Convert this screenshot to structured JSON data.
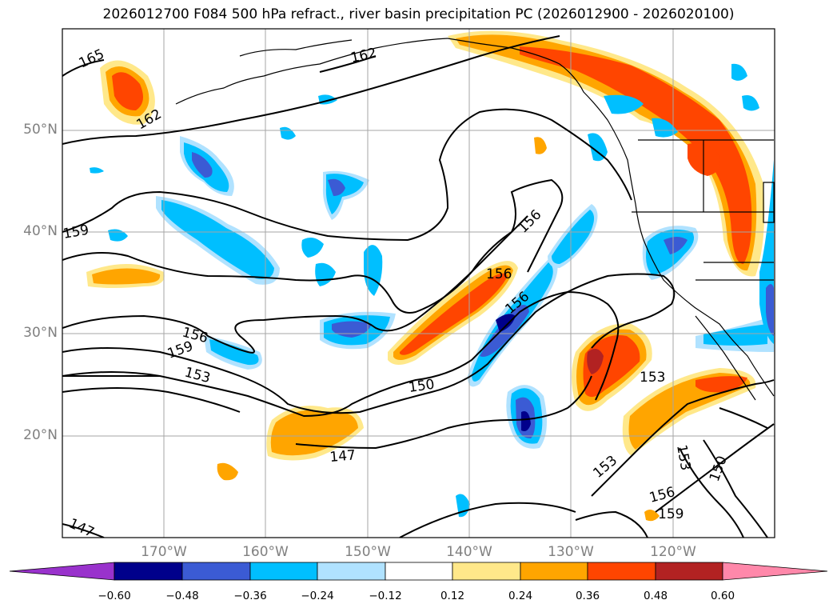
{
  "title": "2026012700 F084 500 hPa refract., river basin precipitation PC (2026012900 - 2026020100)",
  "map": {
    "extent": {
      "lon": [
        -180,
        -110
      ],
      "lat": [
        10,
        60
      ]
    },
    "gridlines": true,
    "lat_labels": [
      "50°N",
      "40°N",
      "30°N",
      "20°N"
    ],
    "lon_labels": [
      "170°W",
      "160°W",
      "150°W",
      "140°W",
      "130°W",
      "120°W"
    ],
    "contour_labels": [
      "165",
      "162",
      "162",
      "159",
      "156",
      "156",
      "156",
      "159",
      "153",
      "150",
      "147",
      "153",
      "153",
      "150",
      "156",
      "159",
      "147"
    ],
    "colors": {
      "neg_extreme": "#9932cc",
      "neg_060": "#00008b",
      "neg_048": "#3b5bd4",
      "neg_036": "#00bfff",
      "neg_024": "#b0e2ff",
      "neutral": "#ffffff",
      "pos_012": "#ffe88a",
      "pos_024": "#ffa500",
      "pos_036": "#ff4500",
      "pos_048": "#b22222",
      "pos_extreme": "#ff88aa"
    }
  },
  "colorbar": {
    "ticks": [
      "−0.60",
      "−0.48",
      "−0.36",
      "−0.24",
      "−0.12",
      "0.12",
      "0.24",
      "0.36",
      "0.48",
      "0.60"
    ]
  }
}
